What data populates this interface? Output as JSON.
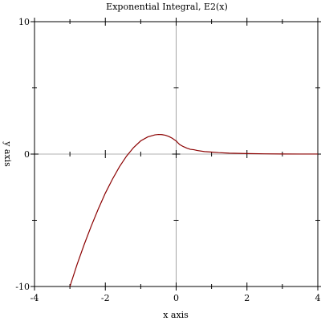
{
  "chart_data": {
    "type": "line",
    "title": "Exponential Integral, E2(x)",
    "xlabel": "x axis",
    "ylabel": "y axis",
    "xlim": [
      -4,
      4
    ],
    "ylim": [
      -10,
      10
    ],
    "x_ticks": [
      -4,
      -2,
      0,
      2,
      4
    ],
    "y_ticks": [
      -10,
      0,
      10
    ],
    "x_tick_labels": [
      "-4",
      "-2",
      "0",
      "2",
      "4"
    ],
    "y_tick_labels": [
      "-10",
      "0",
      "10"
    ],
    "grid": false,
    "series": [
      {
        "color": "#8b0000",
        "x": [
          -3.0,
          -2.8,
          -2.6,
          -2.4,
          -2.2,
          -2.0,
          -1.8,
          -1.6,
          -1.4,
          -1.2,
          -1.0,
          -0.8,
          -0.6,
          -0.5,
          -0.4,
          -0.3,
          -0.2,
          -0.1,
          -0.05,
          -0.01,
          0.0,
          0.05,
          0.1,
          0.2,
          0.3,
          0.4,
          0.5,
          0.6,
          0.8,
          1.0,
          1.2,
          1.5,
          2.0,
          2.5,
          3.0,
          3.5,
          4.0
        ],
        "y": [
          -10.0,
          -8.35,
          -6.85,
          -5.45,
          -4.15,
          -2.95,
          -1.9,
          -0.95,
          -0.15,
          0.5,
          1.0,
          1.3,
          1.45,
          1.48,
          1.47,
          1.42,
          1.32,
          1.18,
          1.08,
          1.01,
          1.0,
          0.85,
          0.72,
          0.57,
          0.45,
          0.36,
          0.33,
          0.27,
          0.19,
          0.15,
          0.11,
          0.07,
          0.04,
          0.02,
          0.01,
          0.005,
          0.003
        ]
      }
    ]
  }
}
